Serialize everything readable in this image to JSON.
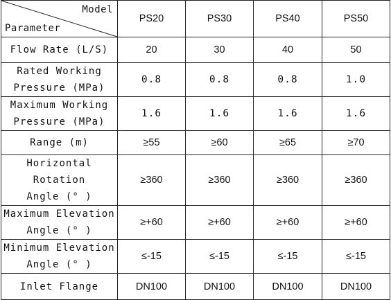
{
  "table": {
    "header": {
      "model_label": "Model",
      "parameter_label": "Parameter",
      "models": [
        "PS20",
        "PS30",
        "PS40",
        "PS50"
      ]
    },
    "rows": [
      {
        "label_lines": [
          "Flow Rate (L/S)"
        ],
        "values": [
          "20",
          "30",
          "40",
          "50"
        ],
        "mono": false
      },
      {
        "label_lines": [
          "Rated Working",
          "Pressure (MPa)"
        ],
        "values": [
          "0.8",
          "0.8",
          "0.8",
          "1.0"
        ],
        "mono": true
      },
      {
        "label_lines": [
          "Maximum Working",
          "Pressure (MPa)"
        ],
        "values": [
          "1.6",
          "1.6",
          "1.6",
          "1.6"
        ],
        "mono": true
      },
      {
        "label_lines": [
          "Range (m)"
        ],
        "values": [
          "≥55",
          "≥60",
          "≥65",
          "≥70"
        ],
        "mono": false
      },
      {
        "label_lines": [
          "Horizontal Rotation",
          "Angle (° )"
        ],
        "values": [
          "≥360",
          "≥360",
          "≥360",
          "≥360"
        ],
        "mono": false
      },
      {
        "label_lines": [
          "Maximum Elevation",
          "Angle (° )"
        ],
        "values": [
          "≥+60",
          "≥+60",
          "≥+60",
          "≥+60"
        ],
        "mono": false
      },
      {
        "label_lines": [
          "Minimum Elevation",
          "Angle (° )"
        ],
        "values": [
          "≤-15",
          "≤-15",
          "≤-15",
          "≤-15"
        ],
        "mono": false
      },
      {
        "label_lines": [
          "Inlet Flange"
        ],
        "values": [
          "DN100",
          "DN100",
          "DN100",
          "DN100"
        ],
        "mono": false
      }
    ]
  }
}
